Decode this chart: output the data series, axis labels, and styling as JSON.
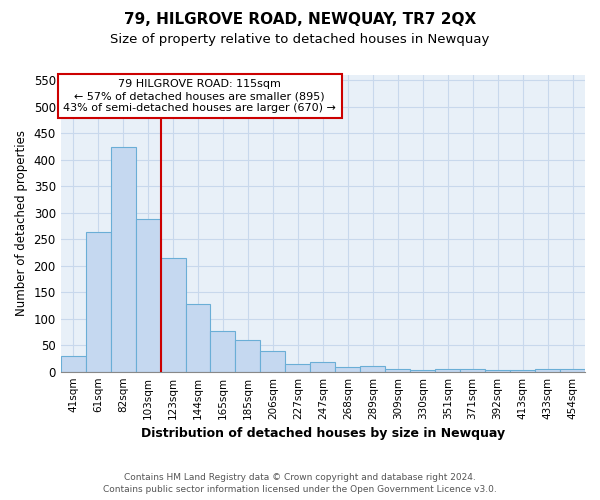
{
  "title": "79, HILGROVE ROAD, NEWQUAY, TR7 2QX",
  "subtitle": "Size of property relative to detached houses in Newquay",
  "xlabel": "Distribution of detached houses by size in Newquay",
  "ylabel": "Number of detached properties",
  "footnote1": "Contains HM Land Registry data © Crown copyright and database right 2024.",
  "footnote2": "Contains public sector information licensed under the Open Government Licence v3.0.",
  "bar_labels": [
    "41sqm",
    "61sqm",
    "82sqm",
    "103sqm",
    "123sqm",
    "144sqm",
    "165sqm",
    "185sqm",
    "206sqm",
    "227sqm",
    "247sqm",
    "268sqm",
    "289sqm",
    "309sqm",
    "330sqm",
    "351sqm",
    "371sqm",
    "392sqm",
    "413sqm",
    "433sqm",
    "454sqm"
  ],
  "bar_values": [
    30,
    263,
    425,
    288,
    215,
    128,
    76,
    60,
    39,
    15,
    18,
    9,
    11,
    5,
    3,
    5,
    5,
    4,
    4,
    5,
    5
  ],
  "bar_color": "#c5d8f0",
  "bar_edge_color": "#6aaed6",
  "bar_edge_width": 0.8,
  "red_line_color": "#cc0000",
  "annotation_line1": "79 HILGROVE ROAD: 115sqm",
  "annotation_line2": "← 57% of detached houses are smaller (895)",
  "annotation_line3": "43% of semi-detached houses are larger (670) →",
  "annotation_box_color": "#cc0000",
  "ylim": [
    0,
    560
  ],
  "yticks": [
    0,
    50,
    100,
    150,
    200,
    250,
    300,
    350,
    400,
    450,
    500,
    550
  ],
  "grid_color": "#c8d8ec",
  "background_color": "#e8f0f8",
  "title_fontsize": 11,
  "subtitle_fontsize": 9.5
}
